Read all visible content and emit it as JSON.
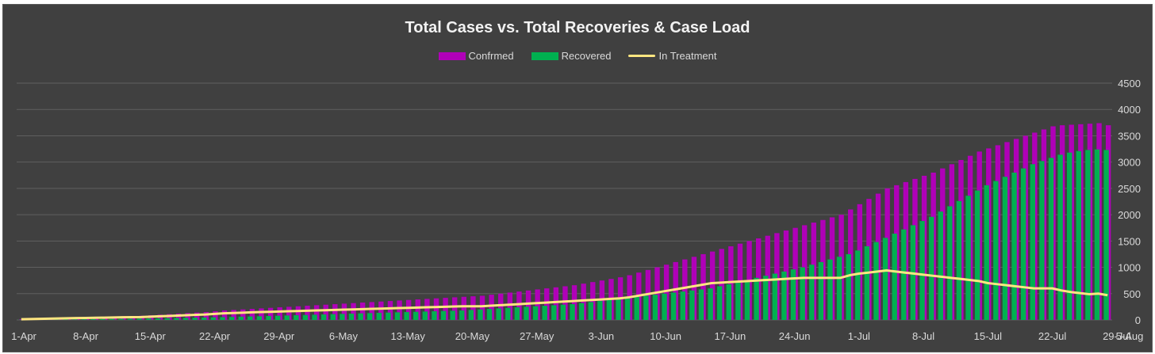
{
  "chart_data": {
    "type": "bar",
    "title": "Total Cases vs. Total Recoveries & Case Load",
    "xlabel": "",
    "ylabel": "",
    "ylim": [
      0,
      4500
    ],
    "y_ticks": [
      0,
      500,
      1000,
      1500,
      2000,
      2500,
      3000,
      3500,
      4000,
      4500
    ],
    "x_tick_labels": [
      "1-Apr",
      "8-Apr",
      "15-Apr",
      "22-Apr",
      "29-Apr",
      "6-May",
      "13-May",
      "20-May",
      "27-May",
      "3-Jun",
      "10-Jun",
      "17-Jun",
      "24-Jun",
      "1-Jul",
      "8-Jul",
      "15-Jul",
      "22-Jul",
      "29-Jul",
      "5-Aug"
    ],
    "x_start": "1-Apr",
    "x_end": "7-Aug",
    "grid": true,
    "legend_position": "top",
    "colors": {
      "Confrmed": "#b000b8",
      "Recovered": "#00b050",
      "In Treatment": "#ffe680"
    },
    "series": [
      {
        "name": "Confrmed",
        "kind": "bar",
        "values": [
          15,
          20,
          25,
          30,
          35,
          40,
          45,
          50,
          55,
          60,
          65,
          70,
          75,
          80,
          90,
          100,
          110,
          120,
          130,
          140,
          150,
          165,
          180,
          190,
          200,
          210,
          220,
          230,
          240,
          250,
          260,
          270,
          280,
          290,
          300,
          310,
          320,
          330,
          340,
          350,
          360,
          370,
          380,
          390,
          400,
          410,
          420,
          430,
          440,
          450,
          460,
          480,
          500,
          520,
          540,
          560,
          580,
          600,
          620,
          640,
          660,
          690,
          720,
          750,
          780,
          810,
          850,
          900,
          950,
          1000,
          1050,
          1100,
          1150,
          1200,
          1250,
          1300,
          1350,
          1400,
          1450,
          1500,
          1550,
          1600,
          1650,
          1700,
          1750,
          1800,
          1850,
          1900,
          1950,
          2000,
          2100,
          2200,
          2300,
          2400,
          2500,
          2560,
          2620,
          2680,
          2740,
          2800,
          2880,
          2960,
          3040,
          3120,
          3200,
          3260,
          3320,
          3380,
          3440,
          3500,
          3560,
          3620,
          3680,
          3700,
          3710,
          3720,
          3730,
          3740,
          3700
        ]
      },
      {
        "name": "Recovered",
        "kind": "bar",
        "values": [
          2,
          3,
          4,
          5,
          6,
          8,
          10,
          12,
          14,
          16,
          18,
          20,
          22,
          25,
          28,
          31,
          34,
          37,
          40,
          43,
          46,
          50,
          54,
          58,
          62,
          66,
          70,
          75,
          80,
          85,
          90,
          95,
          100,
          105,
          110,
          115,
          120,
          125,
          130,
          135,
          140,
          145,
          150,
          155,
          160,
          165,
          170,
          175,
          180,
          190,
          200,
          210,
          220,
          230,
          240,
          250,
          260,
          270,
          280,
          290,
          300,
          320,
          340,
          360,
          380,
          400,
          420,
          440,
          460,
          480,
          500,
          520,
          540,
          560,
          580,
          600,
          640,
          680,
          720,
          760,
          800,
          840,
          880,
          920,
          960,
          1000,
          1050,
          1100,
          1150,
          1200,
          1250,
          1320,
          1400,
          1480,
          1560,
          1640,
          1720,
          1800,
          1880,
          1960,
          2060,
          2160,
          2260,
          2360,
          2460,
          2560,
          2640,
          2720,
          2800,
          2880,
          2960,
          3020,
          3080,
          3140,
          3180,
          3210,
          3230,
          3240,
          3230
        ]
      },
      {
        "name": "In Treatment",
        "kind": "line",
        "values": [
          13,
          17,
          21,
          25,
          29,
          32,
          35,
          38,
          41,
          44,
          47,
          50,
          53,
          55,
          62,
          69,
          76,
          83,
          90,
          97,
          104,
          115,
          126,
          132,
          138,
          144,
          150,
          155,
          160,
          165,
          170,
          175,
          180,
          185,
          190,
          195,
          200,
          205,
          210,
          215,
          220,
          225,
          230,
          235,
          240,
          245,
          250,
          255,
          260,
          260,
          260,
          270,
          280,
          290,
          300,
          310,
          320,
          330,
          340,
          350,
          360,
          370,
          380,
          390,
          400,
          410,
          430,
          460,
          490,
          520,
          550,
          580,
          610,
          640,
          670,
          700,
          710,
          720,
          730,
          740,
          750,
          760,
          770,
          780,
          790,
          800,
          800,
          800,
          800,
          800,
          850,
          880,
          900,
          920,
          940,
          920,
          900,
          880,
          860,
          840,
          820,
          800,
          780,
          760,
          740,
          700,
          680,
          660,
          640,
          620,
          600,
          600,
          600,
          560,
          530,
          510,
          490,
          500,
          470
        ]
      }
    ]
  }
}
